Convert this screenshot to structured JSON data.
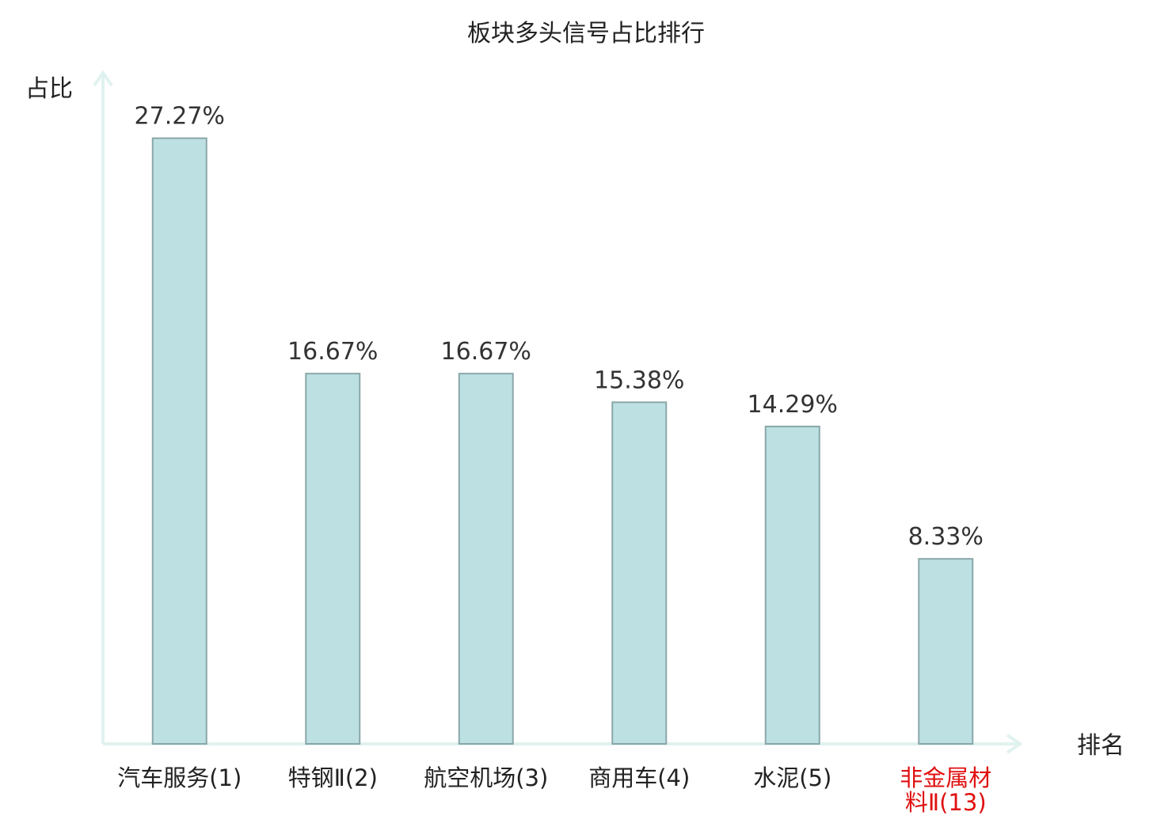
{
  "chart_data": {
    "type": "bar",
    "title": "板块多头信号占比排行",
    "ylabel": "占比",
    "xlabel": "排名",
    "categories": [
      [
        "汽车服务(1)"
      ],
      [
        "特钢Ⅱ(2)"
      ],
      [
        "航空机场(3)"
      ],
      [
        "商用车(4)"
      ],
      [
        "水泥(5)"
      ],
      [
        "非金属材",
        "料Ⅱ(13)"
      ]
    ],
    "values": [
      27.27,
      16.67,
      16.67,
      15.38,
      14.29,
      8.33
    ],
    "value_labels": [
      "27.27%",
      "16.67%",
      "16.67%",
      "15.38%",
      "14.29%",
      "8.33%"
    ],
    "highlight_index": 5,
    "ylim": [
      0,
      30
    ],
    "grid": false,
    "colors": {
      "bar_fill": "#bde0e2",
      "bar_stroke": "#8aa7a9",
      "axis": "#e0f2ef",
      "highlight_label": "#e01010",
      "label": "#222222"
    }
  }
}
